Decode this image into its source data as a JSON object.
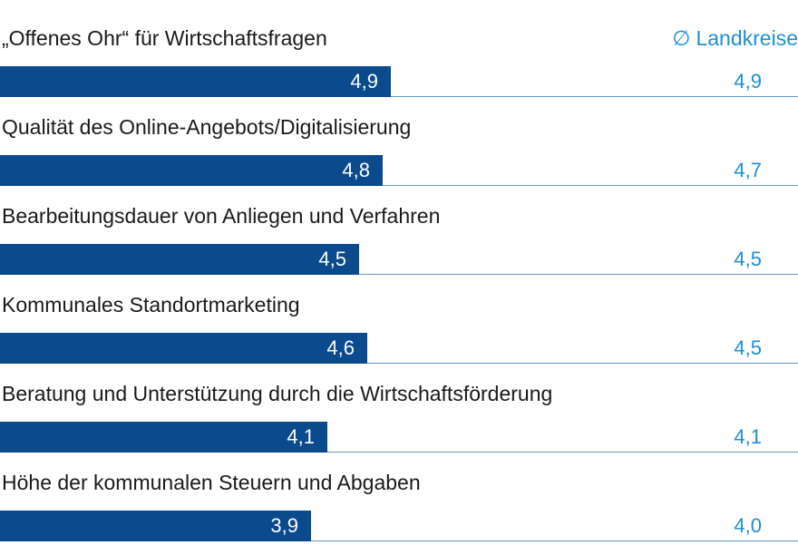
{
  "colors": {
    "bar": "#0b4a8c",
    "average": "#1d8fd6",
    "baseline": "#6a9bc4",
    "label": "#1a1a1a"
  },
  "chart_data": {
    "type": "bar",
    "orientation": "horizontal",
    "title": "",
    "xlabel": "",
    "ylabel": "",
    "xlim": [
      0,
      10
    ],
    "categories": [
      "„Offenes Ohr“ für Wirtschaftsfragen",
      "Qualität des Online-Angebots/Digitalisierung",
      "Bearbeitungsdauer von Anliegen und Verfahren",
      "Kommunales Standortmarketing",
      "Beratung und Unterstützung durch die Wirtschaftsförderung",
      "Höhe der kommunalen Steuern und Abgaben"
    ],
    "values": [
      4.9,
      4.8,
      4.5,
      4.6,
      4.1,
      3.9
    ],
    "value_labels": [
      "4,9",
      "4,8",
      "4,5",
      "4,6",
      "4,1",
      "3,9"
    ],
    "comparison": {
      "symbol": "∅",
      "label": "Landkreise",
      "values": [
        4.9,
        4.7,
        4.5,
        4.5,
        4.1,
        4.0
      ],
      "value_labels": [
        "4,9",
        "4,7",
        "4,5",
        "4,5",
        "4,1",
        "4,0"
      ]
    },
    "grid": false
  }
}
